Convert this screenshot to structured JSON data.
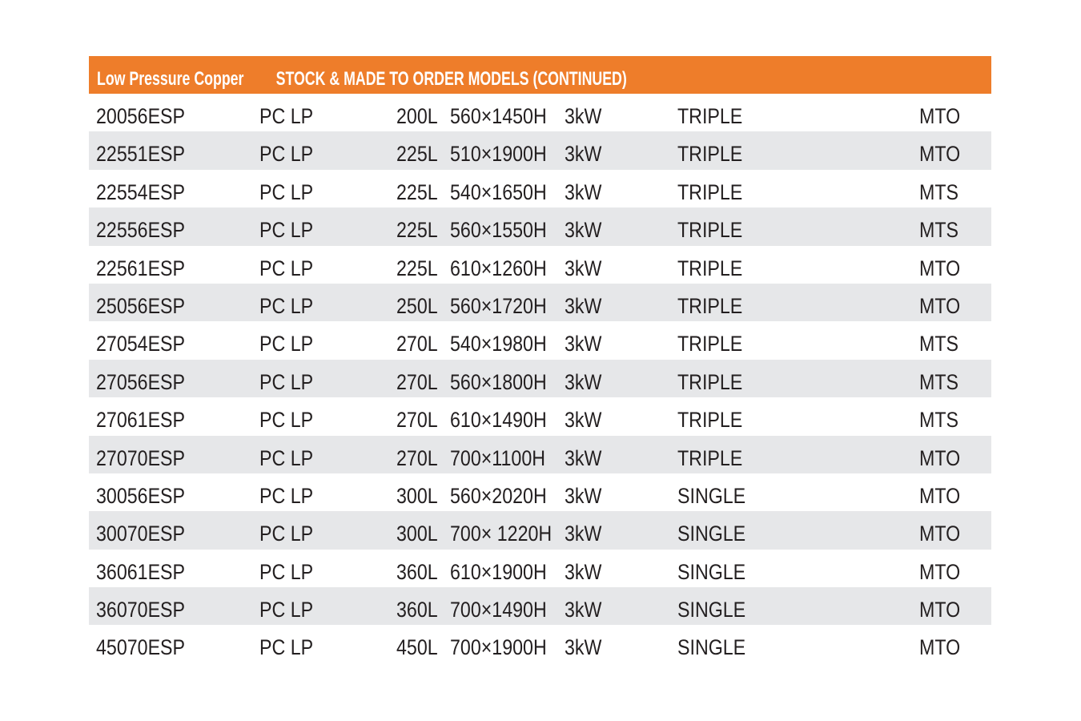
{
  "header": {
    "title_part1": "Low Pressure Copper",
    "title_part2": "STOCK & MADE TO ORDER MODELS (CONTINUED)",
    "color": "#EE7D2A"
  },
  "rows": [
    {
      "model": "20056ESP",
      "type": "PC LP",
      "capacity": "200L",
      "dimensions": "560×1450H",
      "power": "3kW",
      "config": "TRIPLE",
      "availability": "MTO"
    },
    {
      "model": "22551ESP",
      "type": "PC LP",
      "capacity": "225L",
      "dimensions": "510×1900H",
      "power": "3kW",
      "config": "TRIPLE",
      "availability": "MTO"
    },
    {
      "model": "22554ESP",
      "type": "PC LP",
      "capacity": "225L",
      "dimensions": "540×1650H",
      "power": "3kW",
      "config": "TRIPLE",
      "availability": "MTS"
    },
    {
      "model": "22556ESP",
      "type": "PC LP",
      "capacity": "225L",
      "dimensions": "560×1550H",
      "power": "3kW",
      "config": "TRIPLE",
      "availability": "MTS"
    },
    {
      "model": "22561ESP",
      "type": "PC LP",
      "capacity": "225L",
      "dimensions": "610×1260H",
      "power": "3kW",
      "config": "TRIPLE",
      "availability": "MTO"
    },
    {
      "model": "25056ESP",
      "type": "PC LP",
      "capacity": "250L",
      "dimensions": "560×1720H",
      "power": "3kW",
      "config": "TRIPLE",
      "availability": "MTO"
    },
    {
      "model": "27054ESP",
      "type": "PC LP",
      "capacity": "270L",
      "dimensions": "540×1980H",
      "power": "3kW",
      "config": "TRIPLE",
      "availability": "MTS"
    },
    {
      "model": "27056ESP",
      "type": "PC LP",
      "capacity": "270L",
      "dimensions": "560×1800H",
      "power": "3kW",
      "config": "TRIPLE",
      "availability": "MTS"
    },
    {
      "model": "27061ESP",
      "type": "PC LP",
      "capacity": "270L",
      "dimensions": "610×1490H",
      "power": "3kW",
      "config": "TRIPLE",
      "availability": "MTS"
    },
    {
      "model": "27070ESP",
      "type": "PC LP",
      "capacity": "270L",
      "dimensions": "700×1100H",
      "power": "3kW",
      "config": "TRIPLE",
      "availability": "MTO"
    },
    {
      "model": "30056ESP",
      "type": "PC LP",
      "capacity": "300L",
      "dimensions": "560×2020H",
      "power": "3kW",
      "config": "SINGLE",
      "availability": "MTO"
    },
    {
      "model": "30070ESP",
      "type": "PC LP",
      "capacity": "300L",
      "dimensions": "700× 1220H",
      "power": "3kW",
      "config": "SINGLE",
      "availability": "MTO"
    },
    {
      "model": "36061ESP",
      "type": "PC LP",
      "capacity": "360L",
      "dimensions": "610×1900H",
      "power": "3kW",
      "config": "SINGLE",
      "availability": "MTO"
    },
    {
      "model": "36070ESP",
      "type": "PC LP",
      "capacity": "360L",
      "dimensions": "700×1490H",
      "power": "3kW",
      "config": "SINGLE",
      "availability": "MTO"
    },
    {
      "model": "45070ESP",
      "type": "PC LP",
      "capacity": "450L",
      "dimensions": "700×1900H",
      "power": "3kW",
      "config": "SINGLE",
      "availability": "MTO"
    }
  ]
}
